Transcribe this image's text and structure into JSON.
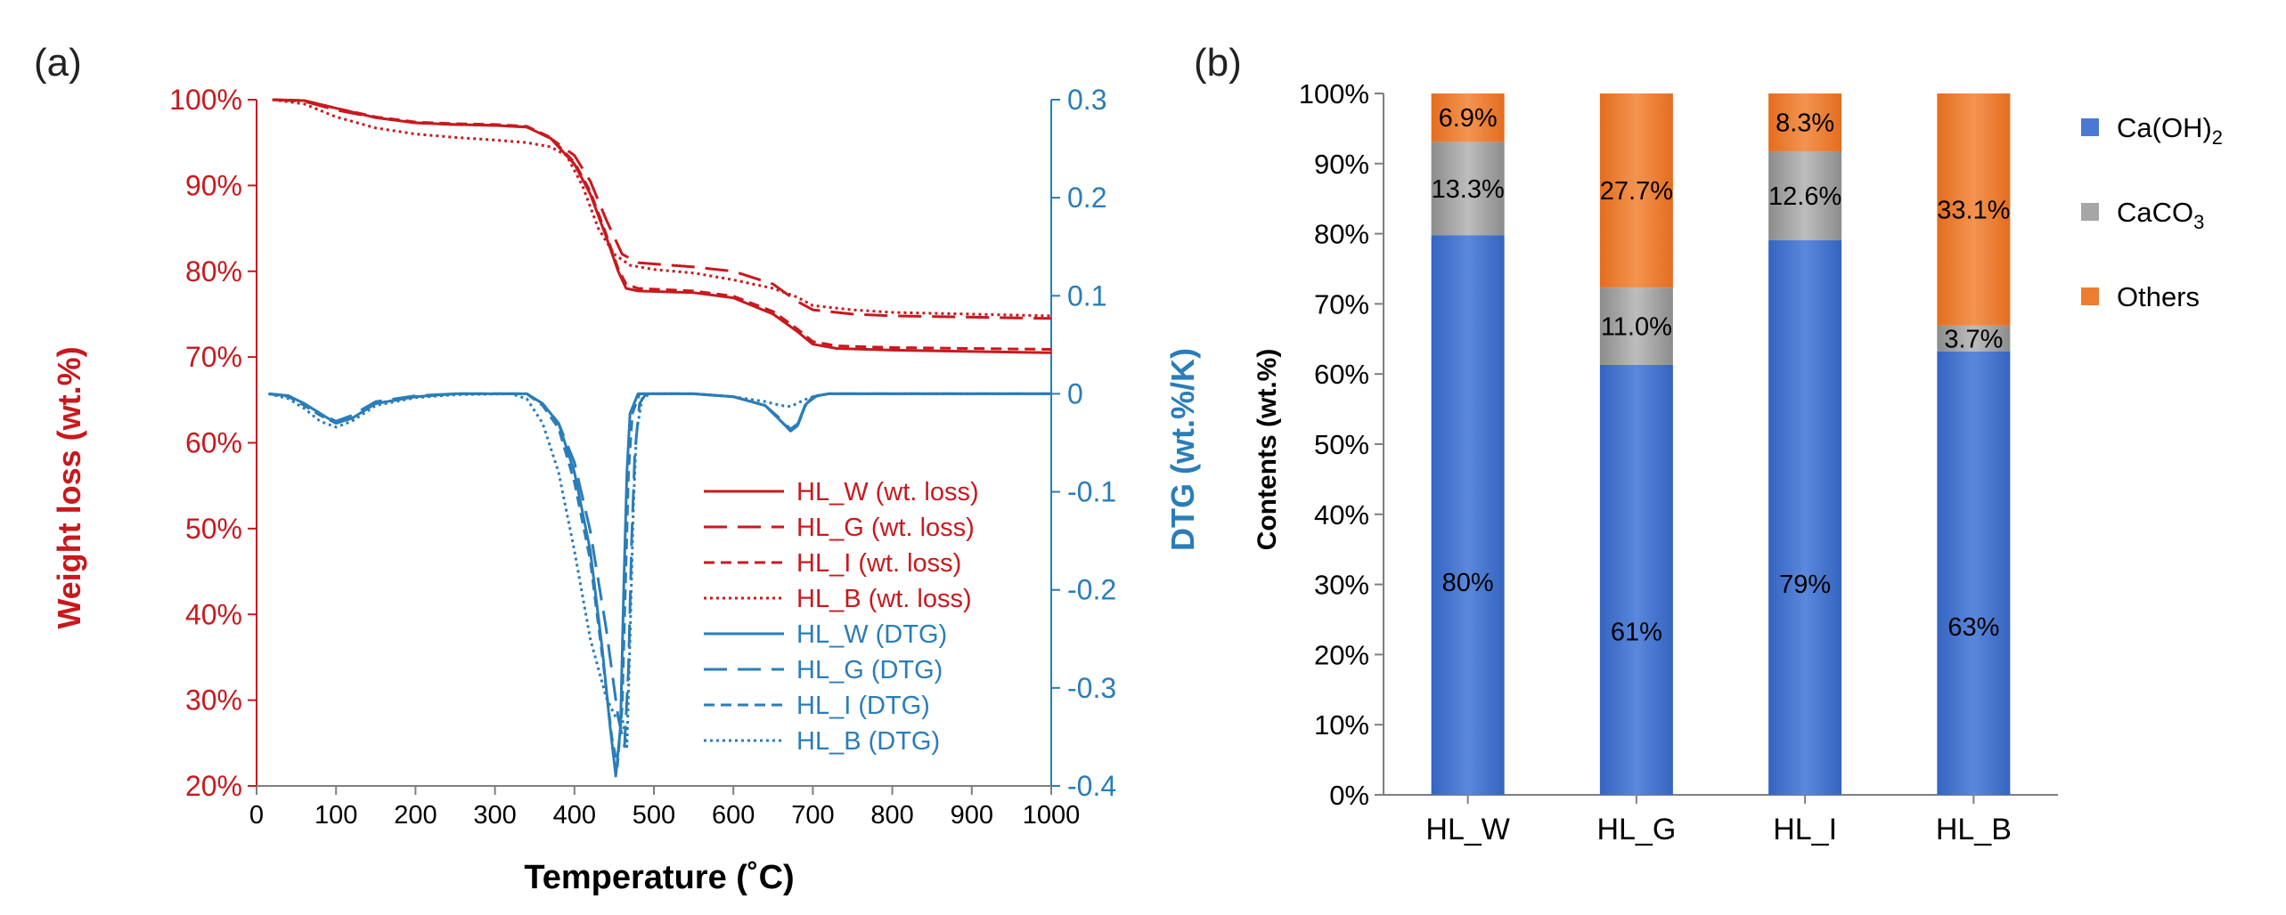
{
  "colors": {
    "red": "#c8191e",
    "blue": "#2a7db8",
    "axis": "#7f7f7f",
    "text": "#000000",
    "caoh2": "#4a79d4",
    "caco3": "#a6a6a6",
    "others": "#ed7d31"
  },
  "chart_data": [
    {
      "panel": "(a)",
      "type": "line",
      "xlabel": "Temperature (˚C)",
      "ylabel_left": "Weight loss (wt.%)",
      "ylabel_right": "DTG (wt.%/K)",
      "xlim": [
        0,
        1000
      ],
      "ylim_left": [
        20,
        100
      ],
      "ylim_right": [
        -0.4,
        0.3
      ],
      "x_ticks": [
        "0",
        "100",
        "200",
        "300",
        "400",
        "500",
        "600",
        "700",
        "800",
        "900",
        "1000"
      ],
      "y_left_ticks": [
        "20%",
        "30%",
        "40%",
        "50%",
        "60%",
        "70%",
        "80%",
        "90%",
        "100%"
      ],
      "y_right_ticks": [
        "-0.4",
        "-0.3",
        "-0.2",
        "-0.1",
        "0",
        "0.1",
        "0.2",
        "0.3"
      ],
      "legend_position": "bottom-right",
      "series": [
        {
          "name": "HL_W (wt. loss)",
          "axis": "left",
          "style": "solid",
          "points": [
            [
              20,
              100
            ],
            [
              60,
              99.9
            ],
            [
              100,
              99
            ],
            [
              150,
              97.9
            ],
            [
              200,
              97.3
            ],
            [
              250,
              97.1
            ],
            [
              300,
              97
            ],
            [
              340,
              96.8
            ],
            [
              370,
              95.5
            ],
            [
              400,
              92.5
            ],
            [
              420,
              89
            ],
            [
              440,
              84
            ],
            [
              455,
              80
            ],
            [
              465,
              78
            ],
            [
              480,
              77.7
            ],
            [
              550,
              77.5
            ],
            [
              600,
              76.9
            ],
            [
              650,
              75
            ],
            [
              680,
              73
            ],
            [
              700,
              71.5
            ],
            [
              730,
              71
            ],
            [
              800,
              70.8
            ],
            [
              1000,
              70.5
            ]
          ]
        },
        {
          "name": "HL_G (wt. loss)",
          "axis": "left",
          "style": "longdash",
          "points": [
            [
              20,
              100
            ],
            [
              60,
              99.8
            ],
            [
              100,
              98.8
            ],
            [
              150,
              97.9
            ],
            [
              200,
              97.3
            ],
            [
              250,
              97.1
            ],
            [
              300,
              97
            ],
            [
              340,
              96.8
            ],
            [
              370,
              95.5
            ],
            [
              400,
              93.5
            ],
            [
              420,
              90.5
            ],
            [
              440,
              86
            ],
            [
              460,
              82
            ],
            [
              480,
              81
            ],
            [
              550,
              80.5
            ],
            [
              600,
              80
            ],
            [
              650,
              78.5
            ],
            [
              680,
              76.5
            ],
            [
              700,
              75.5
            ],
            [
              750,
              75
            ],
            [
              800,
              74.8
            ],
            [
              1000,
              74.5
            ]
          ]
        },
        {
          "name": "HL_I (wt. loss)",
          "axis": "left",
          "style": "dash",
          "points": [
            [
              20,
              100
            ],
            [
              60,
              99.9
            ],
            [
              100,
              99
            ],
            [
              150,
              98
            ],
            [
              200,
              97.4
            ],
            [
              250,
              97.2
            ],
            [
              300,
              97.1
            ],
            [
              340,
              96.9
            ],
            [
              370,
              95.6
            ],
            [
              400,
              92.7
            ],
            [
              420,
              89.3
            ],
            [
              440,
              84.3
            ],
            [
              455,
              80.3
            ],
            [
              465,
              78.5
            ],
            [
              480,
              78
            ],
            [
              550,
              77.7
            ],
            [
              600,
              77.1
            ],
            [
              650,
              75.3
            ],
            [
              680,
              73.3
            ],
            [
              700,
              71.8
            ],
            [
              730,
              71.3
            ],
            [
              800,
              71.1
            ],
            [
              1000,
              70.9
            ]
          ]
        },
        {
          "name": "HL_B (wt. loss)",
          "axis": "left",
          "style": "dot",
          "points": [
            [
              20,
              100
            ],
            [
              60,
              99.5
            ],
            [
              100,
              98
            ],
            [
              150,
              96.7
            ],
            [
              200,
              96
            ],
            [
              250,
              95.6
            ],
            [
              300,
              95.3
            ],
            [
              340,
              95
            ],
            [
              370,
              94.5
            ],
            [
              390,
              93.5
            ],
            [
              410,
              90
            ],
            [
              430,
              85
            ],
            [
              450,
              82
            ],
            [
              470,
              80.7
            ],
            [
              500,
              80.2
            ],
            [
              550,
              79.8
            ],
            [
              600,
              79
            ],
            [
              650,
              78
            ],
            [
              680,
              77
            ],
            [
              700,
              76
            ],
            [
              750,
              75.5
            ],
            [
              800,
              75.2
            ],
            [
              1000,
              74.8
            ]
          ]
        },
        {
          "name": "HL_W (DTG)",
          "axis": "right",
          "style": "solid",
          "points": [
            [
              15,
              0
            ],
            [
              40,
              -0.002
            ],
            [
              60,
              -0.01
            ],
            [
              80,
              -0.02
            ],
            [
              100,
              -0.03
            ],
            [
              120,
              -0.025
            ],
            [
              150,
              -0.01
            ],
            [
              200,
              -0.003
            ],
            [
              250,
              0
            ],
            [
              340,
              0
            ],
            [
              360,
              -0.01
            ],
            [
              380,
              -0.03
            ],
            [
              400,
              -0.08
            ],
            [
              420,
              -0.16
            ],
            [
              435,
              -0.26
            ],
            [
              445,
              -0.34
            ],
            [
              452,
              -0.39
            ],
            [
              458,
              -0.34
            ],
            [
              462,
              -0.2
            ],
            [
              466,
              -0.08
            ],
            [
              470,
              -0.02
            ],
            [
              480,
              0
            ],
            [
              550,
              0
            ],
            [
              600,
              -0.003
            ],
            [
              640,
              -0.012
            ],
            [
              660,
              -0.028
            ],
            [
              672,
              -0.038
            ],
            [
              680,
              -0.033
            ],
            [
              690,
              -0.012
            ],
            [
              700,
              -0.003
            ],
            [
              720,
              0
            ],
            [
              1000,
              0
            ]
          ]
        },
        {
          "name": "HL_G (DTG)",
          "axis": "right",
          "style": "longdash",
          "points": [
            [
              15,
              0
            ],
            [
              40,
              -0.002
            ],
            [
              60,
              -0.01
            ],
            [
              80,
              -0.02
            ],
            [
              100,
              -0.028
            ],
            [
              120,
              -0.022
            ],
            [
              150,
              -0.008
            ],
            [
              200,
              -0.002
            ],
            [
              250,
              0
            ],
            [
              340,
              0
            ],
            [
              360,
              -0.01
            ],
            [
              380,
              -0.03
            ],
            [
              400,
              -0.07
            ],
            [
              420,
              -0.14
            ],
            [
              440,
              -0.24
            ],
            [
              455,
              -0.33
            ],
            [
              463,
              -0.36
            ],
            [
              468,
              -0.28
            ],
            [
              472,
              -0.15
            ],
            [
              476,
              -0.06
            ],
            [
              482,
              -0.01
            ],
            [
              490,
              0
            ],
            [
              550,
              0
            ],
            [
              600,
              -0.003
            ],
            [
              640,
              -0.012
            ],
            [
              660,
              -0.026
            ],
            [
              672,
              -0.036
            ],
            [
              682,
              -0.03
            ],
            [
              692,
              -0.01
            ],
            [
              705,
              -0.002
            ],
            [
              720,
              0
            ],
            [
              1000,
              0
            ]
          ]
        },
        {
          "name": "HL_I (DTG)",
          "axis": "right",
          "style": "dash",
          "points": [
            [
              15,
              0
            ],
            [
              40,
              -0.003
            ],
            [
              60,
              -0.012
            ],
            [
              80,
              -0.022
            ],
            [
              100,
              -0.03
            ],
            [
              120,
              -0.025
            ],
            [
              150,
              -0.01
            ],
            [
              200,
              -0.003
            ],
            [
              250,
              0
            ],
            [
              340,
              0
            ],
            [
              360,
              -0.012
            ],
            [
              380,
              -0.035
            ],
            [
              400,
              -0.09
            ],
            [
              420,
              -0.17
            ],
            [
              437,
              -0.28
            ],
            [
              447,
              -0.35
            ],
            [
              454,
              -0.38
            ],
            [
              460,
              -0.32
            ],
            [
              464,
              -0.2
            ],
            [
              468,
              -0.08
            ],
            [
              473,
              -0.02
            ],
            [
              482,
              0
            ],
            [
              550,
              0
            ],
            [
              600,
              -0.003
            ],
            [
              640,
              -0.012
            ],
            [
              660,
              -0.028
            ],
            [
              672,
              -0.037
            ],
            [
              681,
              -0.032
            ],
            [
              691,
              -0.011
            ],
            [
              702,
              -0.003
            ],
            [
              720,
              0
            ],
            [
              1000,
              0
            ]
          ]
        },
        {
          "name": "HL_B (DTG)",
          "axis": "right",
          "style": "dot",
          "points": [
            [
              15,
              0
            ],
            [
              40,
              -0.005
            ],
            [
              60,
              -0.015
            ],
            [
              80,
              -0.028
            ],
            [
              100,
              -0.034
            ],
            [
              120,
              -0.028
            ],
            [
              150,
              -0.012
            ],
            [
              200,
              -0.004
            ],
            [
              250,
              -0.001
            ],
            [
              320,
              0
            ],
            [
              340,
              -0.005
            ],
            [
              360,
              -0.03
            ],
            [
              380,
              -0.08
            ],
            [
              400,
              -0.16
            ],
            [
              420,
              -0.25
            ],
            [
              440,
              -0.31
            ],
            [
              452,
              -0.33
            ],
            [
              460,
              -0.33
            ],
            [
              466,
              -0.36
            ],
            [
              470,
              -0.25
            ],
            [
              474,
              -0.12
            ],
            [
              478,
              -0.04
            ],
            [
              485,
              -0.005
            ],
            [
              495,
              0
            ],
            [
              550,
              0
            ],
            [
              600,
              -0.003
            ],
            [
              640,
              -0.008
            ],
            [
              660,
              -0.012
            ],
            [
              672,
              -0.013
            ],
            [
              690,
              -0.006
            ],
            [
              705,
              -0.002
            ],
            [
              720,
              0
            ],
            [
              1000,
              0
            ]
          ]
        }
      ]
    },
    {
      "panel": "(b)",
      "type": "bar",
      "stacked": true,
      "ylabel": "Contents (wt.%)",
      "ylim": [
        0,
        100
      ],
      "y_ticks": [
        "0%",
        "10%",
        "20%",
        "30%",
        "40%",
        "50%",
        "60%",
        "70%",
        "80%",
        "90%",
        "100%"
      ],
      "categories": [
        "HL_W",
        "HL_G",
        "HL_I",
        "HL_B"
      ],
      "legend_position": "right",
      "series": [
        {
          "name": "Ca(OH)₂",
          "values": [
            79.8,
            61.3,
            79.1,
            63.2
          ],
          "labels": [
            "80%",
            "61%",
            "79%",
            "63%"
          ]
        },
        {
          "name": "CaCO₃",
          "values": [
            13.3,
            11.0,
            12.6,
            3.7
          ],
          "labels": [
            "13.3%",
            "11.0%",
            "12.6%",
            "3.7%"
          ]
        },
        {
          "name": "Others",
          "values": [
            6.9,
            27.7,
            8.3,
            33.1
          ],
          "labels": [
            "6.9%",
            "27.7%",
            "8.3%",
            "33.1%"
          ]
        }
      ]
    }
  ]
}
